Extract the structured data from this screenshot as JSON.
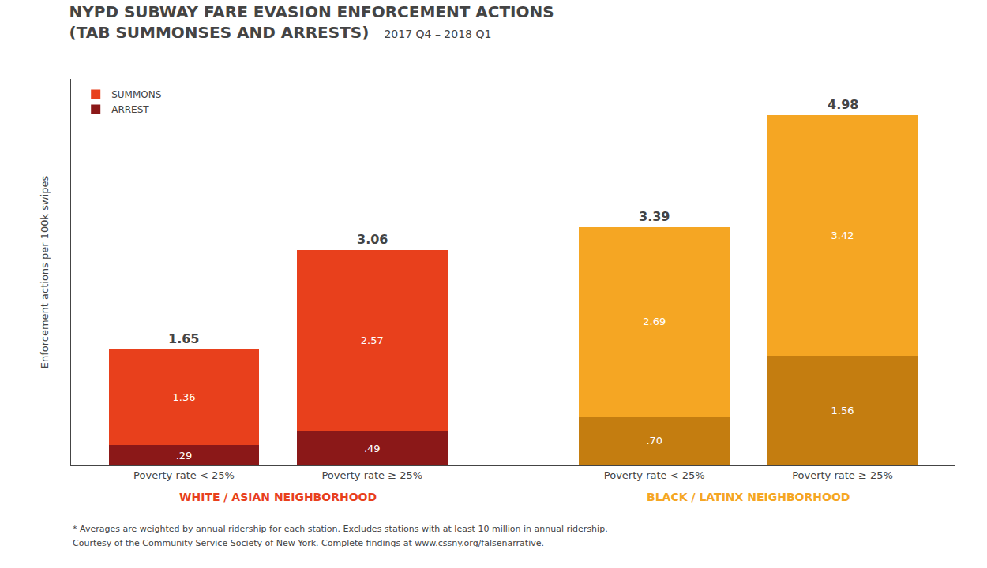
{
  "chart_data": {
    "type": "bar",
    "stacked": true,
    "title": "NYPD SUBWAY FARE EVASION ENFORCEMENT ACTIONS",
    "subtitle": "(TAB SUMMONSES AND ARRESTS)",
    "period": "2017 Q4 – 2018 Q1",
    "ylabel": "Enforcement actions per 100k swipes",
    "groups": [
      {
        "label": "WHITE / ASIAN NEIGHBORHOOD",
        "color": "#e8401c",
        "categories": [
          "Poverty rate < 25%",
          "Poverty rate ≥ 25%"
        ]
      },
      {
        "label": "BLACK / LATINX NEIGHBORHOOD",
        "color": "#f5a623",
        "categories": [
          "Poverty rate < 25%",
          "Poverty rate ≥ 25%"
        ]
      }
    ],
    "series": [
      {
        "name": "ARREST",
        "colors": [
          "#8b1818",
          "#8b1818",
          "#c47d10",
          "#c47d10"
        ],
        "values": [
          0.29,
          0.49,
          0.7,
          1.56
        ],
        "value_labels": [
          ".29",
          ".49",
          ".70",
          "1.56"
        ]
      },
      {
        "name": "SUMMONS",
        "colors": [
          "#e8401c",
          "#e8401c",
          "#f5a623",
          "#f5a623"
        ],
        "values": [
          1.36,
          2.57,
          2.69,
          3.42
        ]
      }
    ],
    "totals": [
      1.65,
      3.06,
      3.39,
      4.98
    ],
    "data_labels": true,
    "ylim": [
      0,
      5.5
    ],
    "tick_labels": "x",
    "grid": false,
    "legend": "upper left",
    "footnotes": [
      "* Averages are weighted by annual ridership for each station. Excludes stations with at least 10 million in annual ridership.",
      "Courtesy of the Community Service Society of New York. Complete findings at www.cssny.org/falsenarrative."
    ]
  }
}
